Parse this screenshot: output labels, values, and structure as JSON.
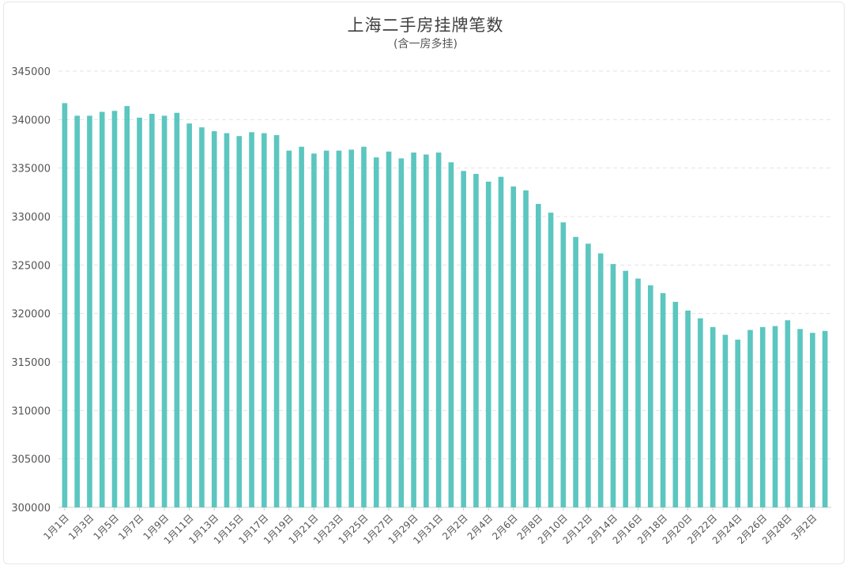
{
  "chart_data": {
    "type": "bar",
    "title": "上海二手房挂牌笔数",
    "subtitle": "(含一房多挂)",
    "xlabel": "",
    "ylabel": "",
    "ylim": [
      300000,
      345000
    ],
    "yticks": [
      300000,
      305000,
      310000,
      315000,
      320000,
      325000,
      330000,
      335000,
      340000,
      345000
    ],
    "grid": true,
    "bar_color": "#5cc6c0",
    "categories": [
      "1月1日",
      "1月2日",
      "1月3日",
      "1月4日",
      "1月5日",
      "1月6日",
      "1月7日",
      "1月8日",
      "1月9日",
      "1月10日",
      "1月11日",
      "1月12日",
      "1月13日",
      "1月14日",
      "1月15日",
      "1月16日",
      "1月17日",
      "1月18日",
      "1月19日",
      "1月20日",
      "1月21日",
      "1月22日",
      "1月23日",
      "1月24日",
      "1月25日",
      "1月26日",
      "1月27日",
      "1月28日",
      "1月29日",
      "1月30日",
      "1月31日",
      "2月1日",
      "2月2日",
      "2月3日",
      "2月4日",
      "2月5日",
      "2月6日",
      "2月7日",
      "2月8日",
      "2月9日",
      "2月10日",
      "2月11日",
      "2月12日",
      "2月13日",
      "2月14日",
      "2月15日",
      "2月16日",
      "2月17日",
      "2月18日",
      "2月19日",
      "2月20日",
      "2月21日",
      "2月22日",
      "2月23日",
      "2月24日",
      "2月25日",
      "2月26日",
      "2月27日",
      "2月28日",
      "3月1日",
      "3月2日",
      "3月3日"
    ],
    "shown_tick_labels": [
      "1月1日",
      "1月3日",
      "1月5日",
      "1月7日",
      "1月9日",
      "1月11日",
      "1月13日",
      "1月15日",
      "1月17日",
      "1月19日",
      "1月21日",
      "1月23日",
      "1月25日",
      "1月27日",
      "1月29日",
      "1月31日",
      "2月2日",
      "2月4日",
      "2月6日",
      "2月8日",
      "2月10日",
      "2月12日",
      "2月14日",
      "2月16日",
      "2月18日",
      "2月20日",
      "2月22日",
      "2月24日",
      "2月26日",
      "2月28日",
      "3月2日"
    ],
    "values": [
      341700,
      340400,
      340400,
      340800,
      340900,
      341400,
      340200,
      340600,
      340400,
      340700,
      339600,
      339200,
      338800,
      338600,
      338300,
      338700,
      338600,
      338400,
      336800,
      337200,
      336500,
      336800,
      336800,
      336900,
      337200,
      336100,
      336700,
      336000,
      336600,
      336400,
      336600,
      335600,
      334700,
      334400,
      333600,
      334100,
      333100,
      332700,
      331300,
      330400,
      329400,
      327900,
      327200,
      326200,
      325100,
      324400,
      323600,
      322900,
      322100,
      321200,
      320300,
      319500,
      318600,
      317800,
      317300,
      318300,
      318600,
      318700,
      319300,
      318400,
      318000,
      318200
    ]
  }
}
